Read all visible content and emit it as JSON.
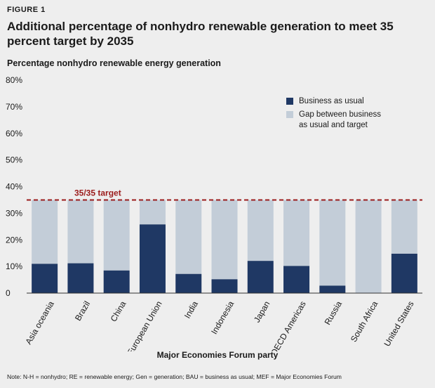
{
  "figure_label": "FIGURE 1",
  "note": "Note: N-H = nonhydro; RE = renewable energy; Gen = generation; BAU = business as usual; MEF = Major Economies Forum",
  "colors": {
    "bau": "#1f3864",
    "gap": "#c3cdd8",
    "target": "#9b1c1c"
  },
  "chart_data": {
    "type": "bar",
    "stacked": true,
    "title": "Additional percentage of nonhydro renewable generation to meet 35 percent target by 2035",
    "ylabel": "Percentage nonhydro renewable energy generation",
    "xlabel": "Major Economies Forum party",
    "ylim": [
      0,
      80
    ],
    "yticks": [
      "0",
      "10%",
      "20%",
      "30%",
      "40%",
      "50%",
      "60%",
      "70%",
      "80%"
    ],
    "categories": [
      "Asia oceania",
      "Brazil",
      "China",
      "European Union",
      "India",
      "Indonesia",
      "Japan",
      "OECD Americas",
      "Russia",
      "South Africa",
      "United States"
    ],
    "series": [
      {
        "name": "Business as usual",
        "values": [
          11,
          11.2,
          8.5,
          25.8,
          7.2,
          5.2,
          12.1,
          10.2,
          2.8,
          0,
          14.8
        ]
      },
      {
        "name": "Gap between business as usual and target",
        "values": [
          24,
          23.8,
          26.5,
          9.2,
          27.8,
          29.8,
          22.9,
          24.8,
          32.2,
          35,
          20.2
        ]
      }
    ],
    "target": {
      "value": 35,
      "label": "35/35 target"
    },
    "legend_position": "top-right",
    "grid": false
  }
}
